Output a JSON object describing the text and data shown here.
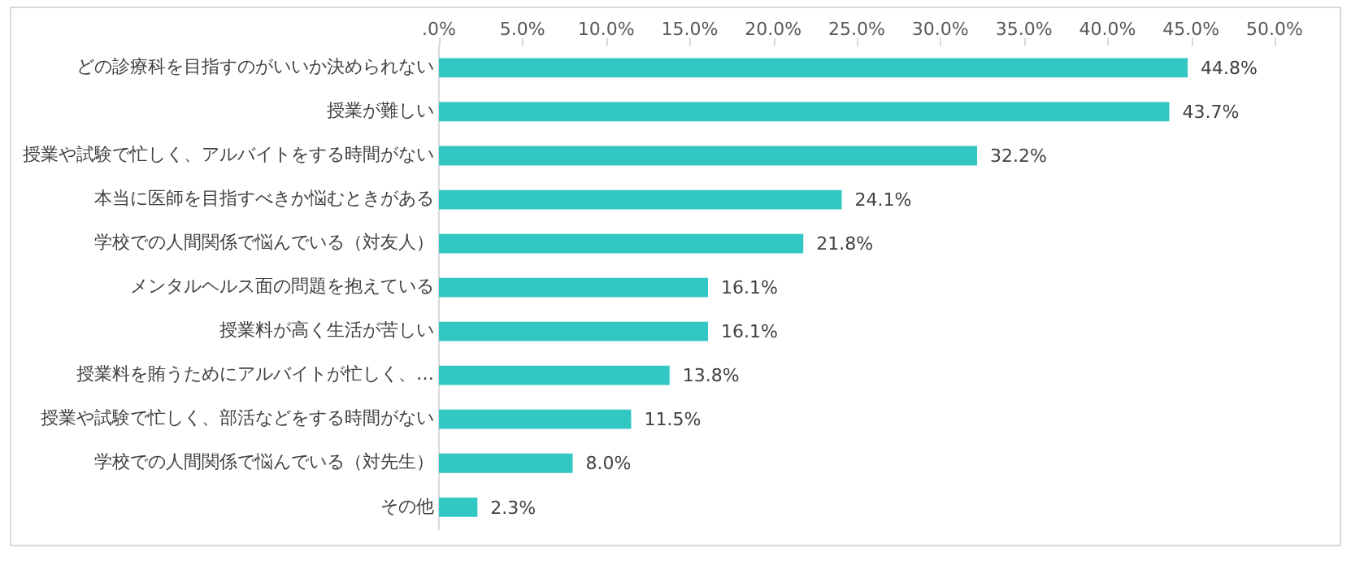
{
  "chart_data": {
    "type": "bar",
    "orientation": "horizontal",
    "categories": [
      "どの診療科を目指すのがいいか決められない",
      "授業が難しい",
      "授業や試験で忙しく、アルバイトをする時間がない",
      "本当に医師を目指すべきか悩むときがある",
      "学校での人間関係で悩んでいる（対友人）",
      "メンタルヘルス面の問題を抱えている",
      "授業料が高く生活が苦しい",
      "授業料を賄うためにアルバイトが忙しく、…",
      "授業や試験で忙しく、部活などをする時間がない",
      "学校での人間関係で悩んでいる（対先生）",
      "その他"
    ],
    "values": [
      44.8,
      43.7,
      32.2,
      24.1,
      21.8,
      16.1,
      16.1,
      13.8,
      11.5,
      8.0,
      2.3
    ],
    "value_labels": [
      "44.8%",
      "43.7%",
      "32.2%",
      "24.1%",
      "21.8%",
      "16.1%",
      "16.1%",
      "13.8%",
      "11.5%",
      "8.0%",
      "2.3%"
    ],
    "color": "#33c7c4",
    "xlim": [
      0,
      50
    ],
    "xticks": [
      {
        "value": 0,
        "label": ".0%"
      },
      {
        "value": 5,
        "label": "5.0%"
      },
      {
        "value": 10,
        "label": "10.0%"
      },
      {
        "value": 15,
        "label": "15.0%"
      },
      {
        "value": 20,
        "label": "20.0%"
      },
      {
        "value": 25,
        "label": "25.0%"
      },
      {
        "value": 30,
        "label": "30.0%"
      },
      {
        "value": 35,
        "label": "35.0%"
      },
      {
        "value": 40,
        "label": "40.0%"
      },
      {
        "value": 45,
        "label": "45.0%"
      },
      {
        "value": 50,
        "label": "50.0%"
      }
    ],
    "grid": false,
    "legend": false
  }
}
